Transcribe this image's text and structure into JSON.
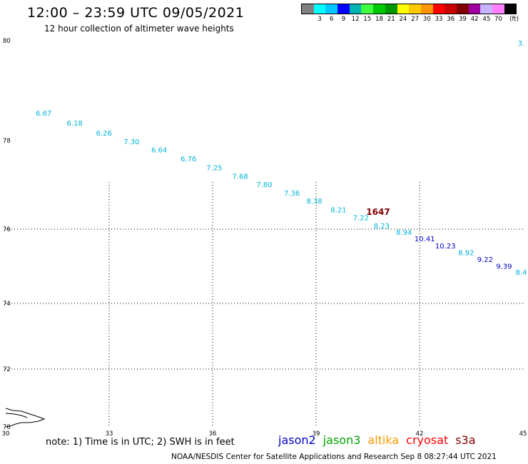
{
  "header": {
    "title": "12:00 – 23:59 UTC 09/05/2021",
    "subtitle": "12 hour collection of altimeter wave heights"
  },
  "legend": {
    "unit": "(ft)",
    "bins": [
      {
        "label": "",
        "color": "#808080"
      },
      {
        "label": "3",
        "color": "#00ffff"
      },
      {
        "label": "6",
        "color": "#00c8ff"
      },
      {
        "label": "9",
        "color": "#0000ff"
      },
      {
        "label": "12",
        "color": "#00b4b4"
      },
      {
        "label": "15",
        "color": "#40ff40"
      },
      {
        "label": "18",
        "color": "#00c800"
      },
      {
        "label": "21",
        "color": "#009600"
      },
      {
        "label": "24",
        "color": "#ffff00"
      },
      {
        "label": "27",
        "color": "#ffc800"
      },
      {
        "label": "30",
        "color": "#ff9600"
      },
      {
        "label": "33",
        "color": "#ff0000"
      },
      {
        "label": "36",
        "color": "#c80000"
      },
      {
        "label": "39",
        "color": "#800000"
      },
      {
        "label": "42",
        "color": "#a000a0"
      },
      {
        "label": "45",
        "color": "#c8b4ff"
      },
      {
        "label": "70",
        "color": "#ff80ff"
      },
      {
        "label": "",
        "color": "#000000"
      }
    ]
  },
  "map": {
    "lon_range": [
      30,
      45
    ],
    "lat_range": [
      70,
      80
    ],
    "lon_ticks": [
      "30",
      "33",
      "36",
      "39",
      "42",
      "45"
    ],
    "lat_ticks": [
      "70",
      "72",
      "74",
      "76",
      "78",
      "80"
    ],
    "gridlines": "dotted",
    "time_label": {
      "text": "1647",
      "lon": 40.8,
      "lat": 76.4,
      "color": "#800000"
    },
    "observations": [
      {
        "text": "3.",
        "lon": 44.95,
        "lat": 79.9,
        "color": "#00b4d8"
      },
      {
        "text": "6.67",
        "lon": 31.1,
        "lat": 78.5,
        "color": "#00b4d8"
      },
      {
        "text": "6.18",
        "lon": 32.0,
        "lat": 78.3,
        "color": "#00b4d8"
      },
      {
        "text": "6.26",
        "lon": 32.85,
        "lat": 78.1,
        "color": "#00b4d8"
      },
      {
        "text": "7.30",
        "lon": 33.65,
        "lat": 77.92,
        "color": "#00b4d8"
      },
      {
        "text": "6.64",
        "lon": 34.45,
        "lat": 77.73,
        "color": "#00b4d8"
      },
      {
        "text": "6.76",
        "lon": 35.3,
        "lat": 77.53,
        "color": "#00b4d8"
      },
      {
        "text": "7.25",
        "lon": 36.05,
        "lat": 77.33,
        "color": "#00b4d8"
      },
      {
        "text": "7.68",
        "lon": 36.8,
        "lat": 77.14,
        "color": "#00b4d8"
      },
      {
        "text": "7.80",
        "lon": 37.5,
        "lat": 76.95,
        "color": "#00b4d8"
      },
      {
        "text": "7.36",
        "lon": 38.3,
        "lat": 76.76,
        "color": "#00b4d8"
      },
      {
        "text": "8.38",
        "lon": 38.95,
        "lat": 76.58,
        "color": "#00b4d8"
      },
      {
        "text": "8.21",
        "lon": 39.65,
        "lat": 76.38,
        "color": "#00b4d8"
      },
      {
        "text": "7.22",
        "lon": 40.3,
        "lat": 76.2,
        "color": "#00b4d8"
      },
      {
        "text": "8.23",
        "lon": 40.9,
        "lat": 76.02,
        "color": "#00b4d8"
      },
      {
        "text": "8.94",
        "lon": 41.55,
        "lat": 75.85,
        "color": "#00b4d8"
      },
      {
        "text": "10.41",
        "lon": 42.15,
        "lat": 75.67,
        "color": "#0000cc"
      },
      {
        "text": "10.23",
        "lon": 42.75,
        "lat": 75.48,
        "color": "#0000cc"
      },
      {
        "text": "8.92",
        "lon": 43.35,
        "lat": 75.3,
        "color": "#00b4d8"
      },
      {
        "text": "9.22",
        "lon": 43.9,
        "lat": 75.12,
        "color": "#0000cc"
      },
      {
        "text": "9.39",
        "lon": 44.45,
        "lat": 74.93,
        "color": "#0000cc"
      },
      {
        "text": "8.4",
        "lon": 44.95,
        "lat": 74.77,
        "color": "#00b4d8"
      }
    ]
  },
  "footer": {
    "note": "note:  1) Time is in UTC;  2) SWH is in feet",
    "missions": [
      {
        "name": "jason2",
        "color": "#0000cc"
      },
      {
        "name": "jason3",
        "color": "#00a000"
      },
      {
        "name": "altika",
        "color": "#ff9900"
      },
      {
        "name": "cryosat",
        "color": "#ff0000"
      },
      {
        "name": "s3a",
        "color": "#800000"
      }
    ],
    "credit": "NOAA/NESDIS Center for Satellite Applications and Research     Sep  8 08:27:44 UTC 2021"
  }
}
